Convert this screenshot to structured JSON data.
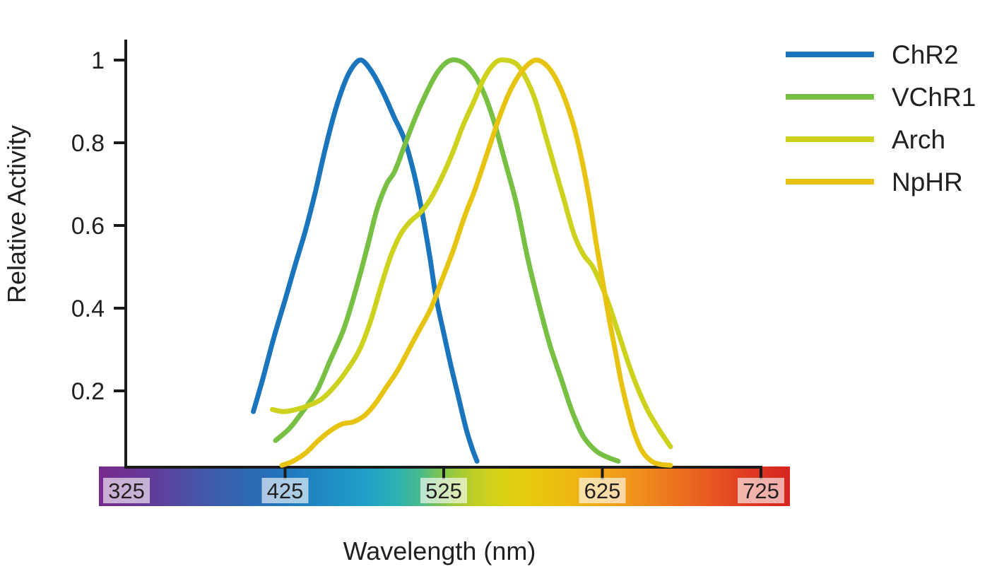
{
  "figure": {
    "title": "",
    "background": "#ffffff",
    "text_color": "#231f20"
  },
  "chart_data": {
    "type": "line",
    "title": "",
    "xlabel": "Wavelength (nm)",
    "ylabel": "Relative Activity",
    "x_ticks": [
      325,
      425,
      525,
      625,
      725
    ],
    "x_tick_labels": [
      "325",
      "425",
      "525",
      "625",
      "725"
    ],
    "y_ticks": [
      1,
      0.8,
      0.6,
      0.4,
      0.2
    ],
    "y_tick_labels": [
      "1",
      "0.8",
      "0.6",
      "0.4",
      "0.2"
    ],
    "xlim": [
      308,
      743
    ],
    "ylim": [
      0,
      1.05
    ],
    "grid": false,
    "legend_position": "top-right",
    "x_axis_style": "spectrum-color-bar",
    "spectrum_bar": {
      "start_nm": 308,
      "end_nm": 743,
      "tick_label_box_color": "rgba(255,255,255,0.62)",
      "stops": [
        [
          308,
          "#772a8d"
        ],
        [
          340,
          "#643a99"
        ],
        [
          370,
          "#4755a8"
        ],
        [
          400,
          "#2f68b3"
        ],
        [
          425,
          "#2076bc"
        ],
        [
          450,
          "#1f8ac4"
        ],
        [
          475,
          "#1f9fc8"
        ],
        [
          495,
          "#2bb1b2"
        ],
        [
          510,
          "#48bb8d"
        ],
        [
          520,
          "#72c15d"
        ],
        [
          532,
          "#9cc93a"
        ],
        [
          545,
          "#bfce25"
        ],
        [
          560,
          "#d7d216"
        ],
        [
          578,
          "#e6ca0e"
        ],
        [
          600,
          "#edbc11"
        ],
        [
          625,
          "#f0a617"
        ],
        [
          650,
          "#ef8c1d"
        ],
        [
          675,
          "#eb6e1f"
        ],
        [
          700,
          "#e55021"
        ],
        [
          717,
          "#df3a22"
        ],
        [
          733,
          "#d92c20"
        ],
        [
          743,
          "#d62720"
        ]
      ]
    },
    "series": [
      {
        "name": "ChR2",
        "color": "#1b75bc",
        "points": [
          [
            405,
            0.15
          ],
          [
            411,
            0.23
          ],
          [
            418,
            0.33
          ],
          [
            425,
            0.42
          ],
          [
            431,
            0.5
          ],
          [
            438,
            0.59
          ],
          [
            444,
            0.68
          ],
          [
            450,
            0.78
          ],
          [
            456,
            0.87
          ],
          [
            462,
            0.94
          ],
          [
            467,
            0.98
          ],
          [
            473,
            1.0
          ],
          [
            480,
            0.97
          ],
          [
            487,
            0.92
          ],
          [
            494,
            0.86
          ],
          [
            500,
            0.81
          ],
          [
            506,
            0.73
          ],
          [
            511,
            0.64
          ],
          [
            516,
            0.53
          ],
          [
            520,
            0.43
          ],
          [
            525,
            0.34
          ],
          [
            529,
            0.27
          ],
          [
            534,
            0.19
          ],
          [
            539,
            0.11
          ],
          [
            543,
            0.06
          ],
          [
            546,
            0.03
          ]
        ]
      },
      {
        "name": "VChR1",
        "color": "#77c043",
        "points": [
          [
            419,
            0.08
          ],
          [
            428,
            0.11
          ],
          [
            436,
            0.15
          ],
          [
            445,
            0.2
          ],
          [
            453,
            0.27
          ],
          [
            462,
            0.35
          ],
          [
            470,
            0.45
          ],
          [
            477,
            0.55
          ],
          [
            483,
            0.64
          ],
          [
            489,
            0.7
          ],
          [
            494,
            0.73
          ],
          [
            500,
            0.79
          ],
          [
            507,
            0.86
          ],
          [
            514,
            0.92
          ],
          [
            521,
            0.97
          ],
          [
            527,
            0.995
          ],
          [
            533,
            1.0
          ],
          [
            540,
            0.985
          ],
          [
            548,
            0.94
          ],
          [
            556,
            0.86
          ],
          [
            564,
            0.75
          ],
          [
            571,
            0.65
          ],
          [
            578,
            0.52
          ],
          [
            585,
            0.41
          ],
          [
            592,
            0.31
          ],
          [
            599,
            0.23
          ],
          [
            606,
            0.15
          ],
          [
            613,
            0.09
          ],
          [
            621,
            0.055
          ],
          [
            628,
            0.04
          ],
          [
            635,
            0.03
          ]
        ]
      },
      {
        "name": "Arch",
        "color": "#cdd21f",
        "points": [
          [
            417,
            0.155
          ],
          [
            424,
            0.15
          ],
          [
            432,
            0.155
          ],
          [
            440,
            0.165
          ],
          [
            448,
            0.18
          ],
          [
            456,
            0.21
          ],
          [
            464,
            0.25
          ],
          [
            472,
            0.3
          ],
          [
            479,
            0.37
          ],
          [
            486,
            0.46
          ],
          [
            492,
            0.53
          ],
          [
            498,
            0.58
          ],
          [
            504,
            0.61
          ],
          [
            510,
            0.63
          ],
          [
            516,
            0.66
          ],
          [
            523,
            0.71
          ],
          [
            530,
            0.77
          ],
          [
            537,
            0.84
          ],
          [
            544,
            0.9
          ],
          [
            551,
            0.96
          ],
          [
            558,
            0.995
          ],
          [
            564,
            1.0
          ],
          [
            571,
            0.99
          ],
          [
            577,
            0.955
          ],
          [
            583,
            0.9
          ],
          [
            589,
            0.82
          ],
          [
            595,
            0.74
          ],
          [
            601,
            0.66
          ],
          [
            607,
            0.58
          ],
          [
            613,
            0.53
          ],
          [
            619,
            0.5
          ],
          [
            625,
            0.45
          ],
          [
            630,
            0.4
          ],
          [
            636,
            0.33
          ],
          [
            642,
            0.26
          ],
          [
            648,
            0.2
          ],
          [
            654,
            0.15
          ],
          [
            661,
            0.105
          ],
          [
            668,
            0.065
          ]
        ]
      },
      {
        "name": "NpHR",
        "color": "#e8c412",
        "points": [
          [
            423,
            0.02
          ],
          [
            430,
            0.03
          ],
          [
            438,
            0.05
          ],
          [
            446,
            0.08
          ],
          [
            454,
            0.105
          ],
          [
            461,
            0.12
          ],
          [
            468,
            0.125
          ],
          [
            475,
            0.14
          ],
          [
            482,
            0.17
          ],
          [
            489,
            0.21
          ],
          [
            496,
            0.25
          ],
          [
            503,
            0.3
          ],
          [
            510,
            0.35
          ],
          [
            517,
            0.4
          ],
          [
            524,
            0.47
          ],
          [
            531,
            0.54
          ],
          [
            538,
            0.62
          ],
          [
            545,
            0.69
          ],
          [
            552,
            0.77
          ],
          [
            559,
            0.85
          ],
          [
            565,
            0.91
          ],
          [
            571,
            0.955
          ],
          [
            577,
            0.985
          ],
          [
            583,
            1.0
          ],
          [
            589,
            0.99
          ],
          [
            595,
            0.96
          ],
          [
            601,
            0.91
          ],
          [
            607,
            0.84
          ],
          [
            612,
            0.76
          ],
          [
            617,
            0.66
          ],
          [
            621,
            0.56
          ],
          [
            625,
            0.47
          ],
          [
            629,
            0.38
          ],
          [
            633,
            0.3
          ],
          [
            637,
            0.22
          ],
          [
            641,
            0.155
          ],
          [
            645,
            0.1
          ],
          [
            650,
            0.055
          ],
          [
            656,
            0.03
          ],
          [
            662,
            0.022
          ],
          [
            668,
            0.02
          ]
        ]
      }
    ]
  }
}
